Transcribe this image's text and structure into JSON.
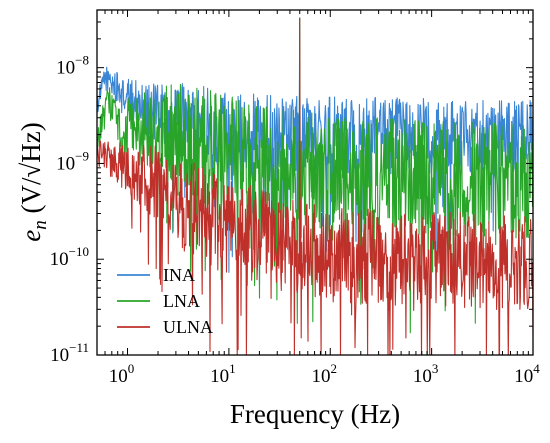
{
  "chart_data": {
    "type": "line",
    "xlabel": "Frequency (Hz)",
    "ylabel_main": "e",
    "ylabel_sub": "n",
    "ylabel_unit": " (V/√Hz)",
    "x_scale": "log",
    "y_scale": "log",
    "xlim": [
      0.5,
      10000
    ],
    "ylim": [
      1e-11,
      4e-08
    ],
    "grid": false,
    "legend_position": "bottom-left",
    "x_ticks": [
      {
        "base": "10",
        "exp": "0",
        "value": 1
      },
      {
        "base": "10",
        "exp": "1",
        "value": 10
      },
      {
        "base": "10",
        "exp": "2",
        "value": 100
      },
      {
        "base": "10",
        "exp": "3",
        "value": 1000
      },
      {
        "base": "10",
        "exp": "4",
        "value": 10000
      }
    ],
    "y_ticks": [
      {
        "base": "10",
        "exp": "−11",
        "value": 1e-11
      },
      {
        "base": "10",
        "exp": "−10",
        "value": 1e-10
      },
      {
        "base": "10",
        "exp": "−9",
        "value": 1e-09
      },
      {
        "base": "10",
        "exp": "−8",
        "value": 1e-08
      }
    ],
    "series": [
      {
        "name": "INA",
        "color": "#3a86d4",
        "envelope": {
          "x": [
            0.5,
            0.6,
            0.7,
            0.9,
            1.1,
            1.5,
            2,
            3,
            5,
            10,
            30,
            50,
            100,
            1000,
            10000
          ],
          "y": [
            4e-09,
            8e-09,
            7e-09,
            5e-09,
            4.5e-09,
            3.8e-09,
            3.2e-09,
            3e-09,
            2.6e-09,
            2.3e-09,
            2.1e-09,
            2.1e-09,
            2e-09,
            1.9e-09,
            1.8e-09
          ]
        },
        "spread_decades": 0.4,
        "peaks": [
          {
            "x": 50,
            "y": 3.3e-08
          }
        ]
      },
      {
        "name": "LNA",
        "color": "#28a528",
        "envelope": {
          "x": [
            0.5,
            0.6,
            0.7,
            0.8,
            0.9,
            1.0,
            1.5,
            3,
            10,
            30,
            100,
            1000,
            10000
          ],
          "y": [
            1.5e-09,
            3.5e-09,
            4.5e-09,
            3e-09,
            1e-09,
            2.5e-09,
            2.2e-09,
            1.8e-09,
            1.3e-09,
            1e-09,
            8e-10,
            7e-10,
            6.5e-10
          ],
          "min_factor": 0.03
        },
        "spread_decades": 0.6,
        "peaks": [
          {
            "x": 50,
            "y": 3.3e-08
          }
        ]
      },
      {
        "name": "ULNA",
        "color": "#c0302a",
        "envelope": {
          "x": [
            0.5,
            0.7,
            1,
            2,
            3,
            5,
            10,
            20,
            30,
            100,
            1000,
            10000
          ],
          "y": [
            1.3e-09,
            1.1e-09,
            9e-10,
            6e-10,
            4.2e-10,
            3e-10,
            2.2e-10,
            1.8e-10,
            1.5e-10,
            1.1e-10,
            1e-10,
            9e-11
          ]
        },
        "spread_decades": 0.5,
        "peaks": [
          {
            "x": 50,
            "y": 3.3e-08
          }
        ]
      }
    ]
  }
}
